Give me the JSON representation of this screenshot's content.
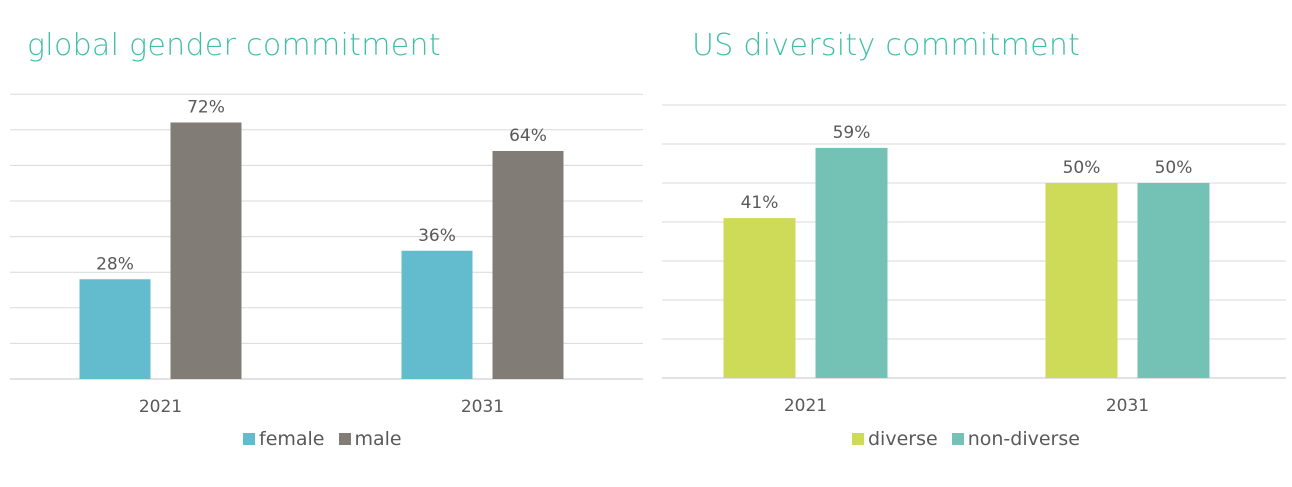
{
  "chart_data": [
    {
      "type": "bar",
      "title": "global gender commitment",
      "categories": [
        "2021",
        "2031"
      ],
      "series": [
        {
          "name": "female",
          "values": [
            28,
            36
          ],
          "labels": [
            "28%",
            "36%"
          ],
          "color": "#62bccd"
        },
        {
          "name": "male",
          "values": [
            72,
            64
          ],
          "labels": [
            "72%",
            "64%"
          ],
          "color": "#827c77"
        }
      ],
      "ylim": [
        0,
        80
      ],
      "grid": true,
      "legend": "bottom"
    },
    {
      "type": "bar",
      "title": "US diversity commitment",
      "categories": [
        "2021",
        "2031"
      ],
      "series": [
        {
          "name": "diverse",
          "values": [
            41,
            50
          ],
          "labels": [
            "41%",
            "50%"
          ],
          "color": "#cddb58"
        },
        {
          "name": "non-diverse",
          "values": [
            59,
            50
          ],
          "labels": [
            "59%",
            "50%"
          ],
          "color": "#74c2b5"
        }
      ],
      "ylim": [
        0,
        70
      ],
      "grid": true,
      "legend": "bottom"
    }
  ]
}
